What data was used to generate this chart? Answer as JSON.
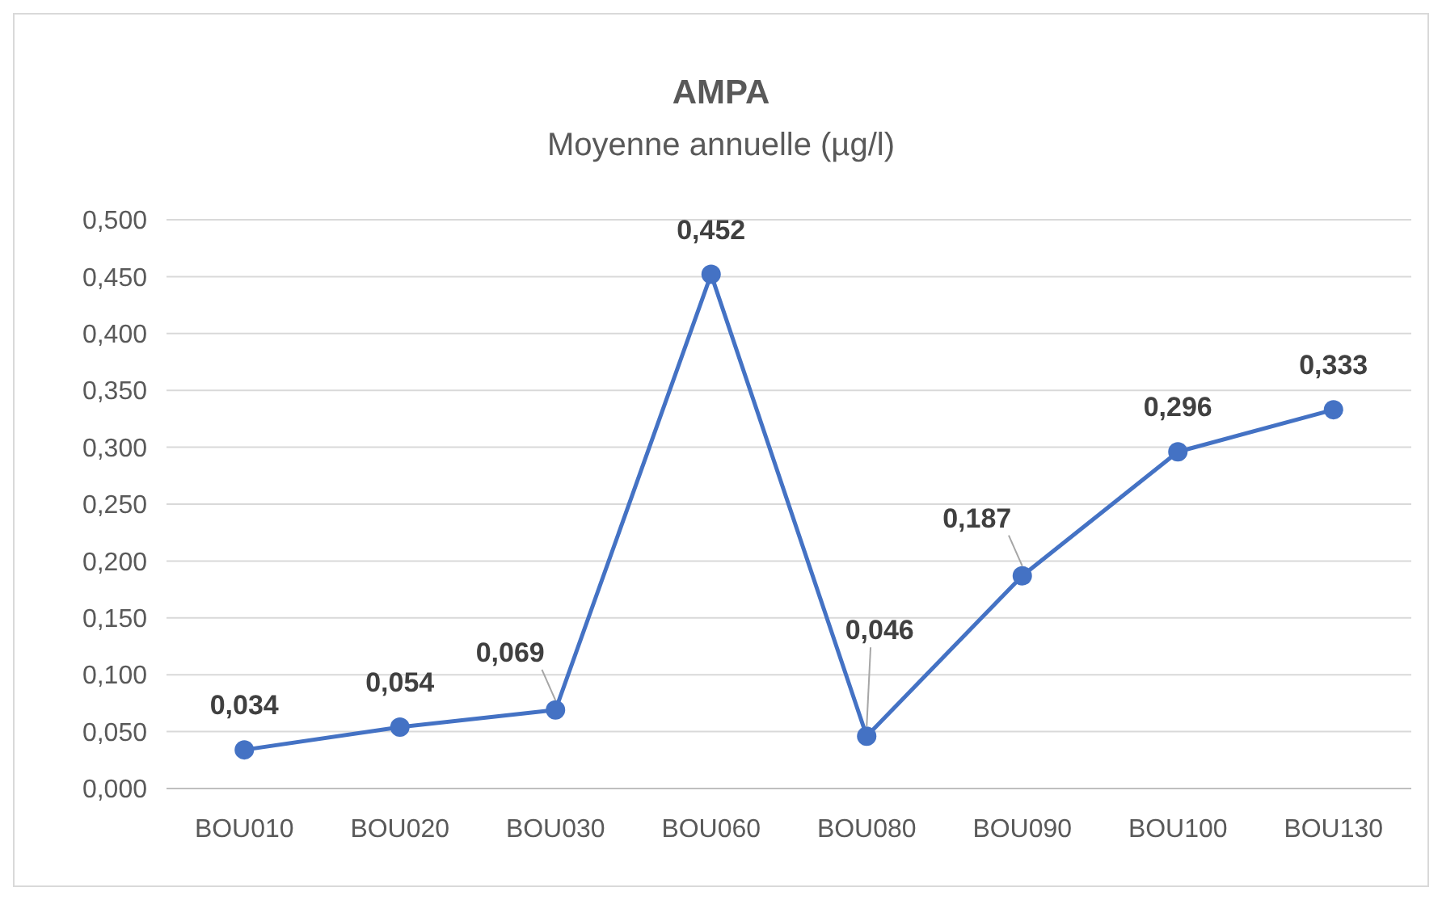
{
  "chart_data": {
    "type": "line",
    "title": "AMPA",
    "subtitle": "Moyenne annuelle (µg/l)",
    "categories": [
      "BOU010",
      "BOU020",
      "BOU030",
      "BOU060",
      "BOU080",
      "BOU090",
      "BOU100",
      "BOU130"
    ],
    "series": [
      {
        "color": "#4472c4",
        "values": [
          0.034,
          0.054,
          0.069,
          0.452,
          0.046,
          0.187,
          0.296,
          0.333
        ],
        "value_labels": [
          "0,034",
          "0,054",
          "0,069",
          "0,452",
          "0,046",
          "0,187",
          "0,296",
          "0,333"
        ]
      }
    ],
    "ylim": [
      0,
      0.5
    ],
    "yticks": [
      {
        "value": 0,
        "label": "0,000"
      },
      {
        "value": 0.05,
        "label": "0,050"
      },
      {
        "value": 0.1,
        "label": "0,100"
      },
      {
        "value": 0.15,
        "label": "0,150"
      },
      {
        "value": 0.2,
        "label": "0,200"
      },
      {
        "value": 0.25,
        "label": "0,250"
      },
      {
        "value": 0.3,
        "label": "0,300"
      },
      {
        "value": 0.35,
        "label": "0,350"
      },
      {
        "value": 0.4,
        "label": "0,400"
      },
      {
        "value": 0.45,
        "label": "0,450"
      },
      {
        "value": 0.5,
        "label": "0,500"
      }
    ],
    "grid": "y",
    "marker": "circle",
    "line_style": "solid"
  }
}
